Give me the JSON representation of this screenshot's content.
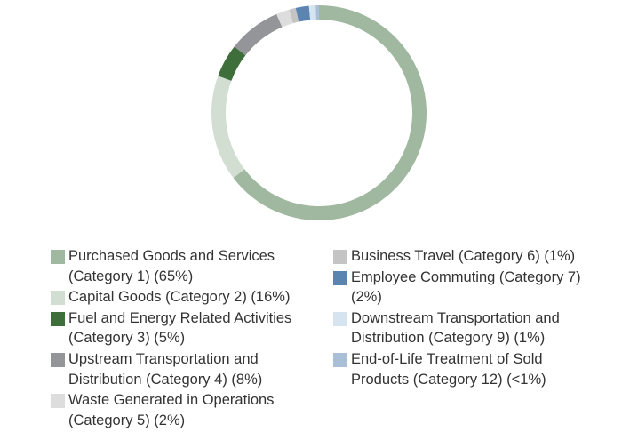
{
  "chart_data": {
    "type": "donut",
    "categories": [
      "Purchased Goods and Services (Category 1) (65%)",
      "Capital Goods (Category 2) (16%)",
      "Fuel and Energy Related Activities (Category 3) (5%)",
      "Upstream Transportation and Distribution (Category 4) (8%)",
      "Waste Generated in Operations (Category 5) (2%)",
      "Business Travel (Category 6) (1%)",
      "Employee Commuting (Category 7) (2%)",
      "Downstream Transportation and Distribution (Category 9) (1%)",
      "End-of-Life Treatment of Sold Products (Category 12) (<1%)"
    ],
    "values": [
      65,
      16,
      5,
      8,
      2,
      1,
      2,
      1,
      0.5
    ],
    "colors": [
      "#9fb89f",
      "#d1ded1",
      "#3e6e3a",
      "#939598",
      "#dddddd",
      "#c4c4c4",
      "#5b84b1",
      "#d6e4ef",
      "#a9bfd8"
    ]
  }
}
